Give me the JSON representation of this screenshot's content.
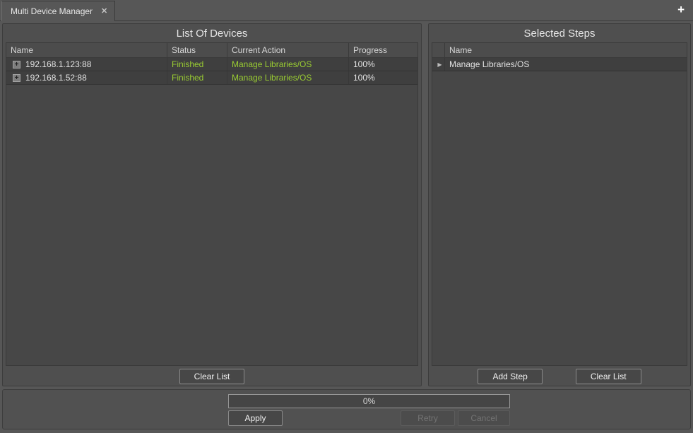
{
  "tab_bar": {
    "tab_label": "Multi Device Manager"
  },
  "icons": {
    "tab_close": "✕",
    "tab_add": "+",
    "row_expander": "+",
    "step_arrow": "▶"
  },
  "left_panel": {
    "title": "List Of Devices",
    "table": {
      "columns": [
        "Name",
        "Status",
        "Current Action",
        "Progress"
      ],
      "rows": [
        {
          "name": "192.168.1.123:88",
          "status": "Finished",
          "current_action": "Manage Libraries/OS",
          "progress": "100%"
        },
        {
          "name": "192.168.1.52:88",
          "status": "Finished",
          "current_action": "Manage Libraries/OS",
          "progress": "100%"
        }
      ]
    },
    "clear_list_label": "Clear List"
  },
  "right_panel": {
    "title": "Selected Steps",
    "table": {
      "columns": [
        "Name"
      ],
      "rows": [
        {
          "name": "Manage Libraries/OS"
        }
      ]
    },
    "add_step_label": "Add Step",
    "clear_list_label": "Clear List"
  },
  "bottom_bar": {
    "progress_value": "0%",
    "apply_label": "Apply",
    "retry_label": "Retry",
    "cancel_label": "Cancel"
  },
  "colors": {
    "background": "#575757",
    "panel_background": "#4f4f4f",
    "row_background": "#3f3f3f",
    "status_green": "#9acd32",
    "border_dark": "#3a3a3a",
    "button_border": "#8a8a8a"
  }
}
